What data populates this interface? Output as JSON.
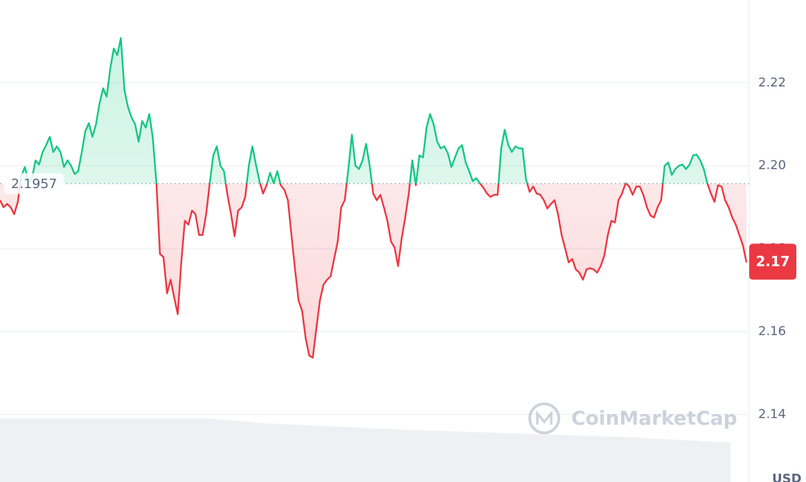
{
  "chart_data": {
    "type": "line",
    "values": [
      2.1917,
      2.19,
      2.1908,
      2.19,
      2.1883,
      2.1913,
      2.1975,
      2.1997,
      2.1963,
      2.197,
      2.2013,
      2.2003,
      2.2033,
      2.205,
      2.207,
      2.2033,
      2.2047,
      2.2033,
      2.1997,
      2.2013,
      2.2,
      2.198,
      2.1987,
      2.2033,
      2.2083,
      2.2103,
      2.207,
      2.21,
      2.215,
      2.2187,
      2.2167,
      2.2233,
      2.2283,
      2.2267,
      2.2308,
      2.2183,
      2.2142,
      2.2117,
      2.21,
      2.2058,
      2.2108,
      2.2092,
      2.2125,
      2.2067,
      2.1958,
      2.1787,
      2.178,
      2.1692,
      2.1725,
      2.1683,
      2.1642,
      2.1767,
      2.1867,
      2.1858,
      2.1892,
      2.1883,
      2.1833,
      2.1833,
      2.1883,
      2.1958,
      2.2025,
      2.2047,
      2.2,
      2.1987,
      2.193,
      2.1883,
      2.183,
      2.1892,
      2.19,
      2.1925,
      2.2,
      2.2047,
      2.2003,
      2.1963,
      2.1933,
      2.1953,
      2.1983,
      2.1958,
      2.1987,
      2.1953,
      2.1942,
      2.1917,
      2.1833,
      2.175,
      2.1675,
      2.165,
      2.1583,
      2.1542,
      2.1537,
      2.1608,
      2.1675,
      2.1713,
      2.1725,
      2.1733,
      2.1775,
      2.1817,
      2.19,
      2.1917,
      2.1992,
      2.2075,
      2.2,
      2.1992,
      2.2013,
      2.2053,
      2.2,
      2.1933,
      2.1917,
      2.193,
      2.19,
      2.1867,
      2.1817,
      2.1803,
      2.1758,
      2.1825,
      2.1875,
      2.1933,
      2.2013,
      2.1953,
      2.2025,
      2.202,
      2.2092,
      2.2125,
      2.21,
      2.2058,
      2.2042,
      2.2047,
      2.203,
      2.1997,
      2.202,
      2.2042,
      2.205,
      2.2008,
      2.1987,
      2.1963,
      2.197,
      2.1958,
      2.1947,
      2.1933,
      2.1925,
      2.193,
      2.193,
      2.2042,
      2.2087,
      2.205,
      2.2033,
      2.2047,
      2.2042,
      2.2042,
      2.1967,
      2.1937,
      2.195,
      2.1933,
      2.193,
      2.1917,
      2.1897,
      2.1908,
      2.1917,
      2.1883,
      2.1833,
      2.18,
      2.1767,
      2.1775,
      2.175,
      2.1742,
      2.1725,
      2.175,
      2.1753,
      2.175,
      2.1742,
      2.1758,
      2.1783,
      2.1833,
      2.1867,
      2.1863,
      2.1917,
      2.1933,
      2.1958,
      2.195,
      2.193,
      2.195,
      2.195,
      2.193,
      2.19,
      2.188,
      2.1875,
      2.19,
      2.1917,
      2.2,
      2.2008,
      2.1978,
      2.1992,
      2.2,
      2.2003,
      2.1992,
      2.2003,
      2.2025,
      2.2027,
      2.2013,
      2.1992,
      2.1958,
      2.1933,
      2.1913,
      2.1953,
      2.195,
      2.1917,
      2.19,
      2.1875,
      2.1858,
      2.1833,
      2.1808,
      2.1767
    ],
    "reference": 2.1957,
    "current_price": 2.17,
    "ylim": [
      2.1237,
      2.24
    ],
    "yticks": [
      2.14,
      2.16,
      2.18,
      {
        "value": 2.2,
        "label": "2.20"
      },
      2.22
    ],
    "grid": true,
    "up_color": "#16c784",
    "down_color": "#ea3943",
    "watermark": "CoinMarketCap",
    "currency": "USD"
  }
}
